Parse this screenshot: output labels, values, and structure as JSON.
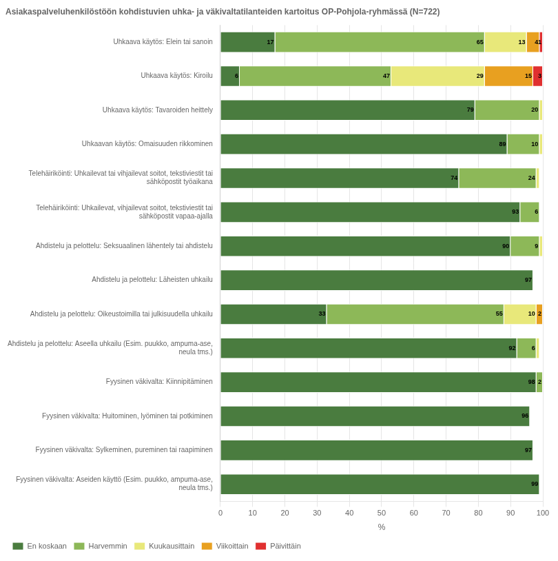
{
  "chart_data": {
    "type": "bar",
    "orientation": "horizontal",
    "stacked": true,
    "title": "Asiakaspalveluhenkilöstöön kohdistuvien uhka- ja väkivaltatilanteiden kartoitus OP-Pohjola-ryhmässä (N=722)",
    "xlabel": "%",
    "categories": [
      "Uhkaava käytös: Elein tai sanoin",
      "Uhkaava käytös: Kiroilu",
      "Uhkaava käytös: Tavaroiden heittely",
      "Uhkaavan käytös: Omaisuuden rikkominen",
      "Telehäiriköinti: Uhkailevat tai vihjailevat soitot, tekstiviestit tai\nsähköpostit työaikana",
      "Telehäiriköinti: Uhkailevat, vihjailevat soitot, tekstiviestit tai\nsähköpostit vapaa-ajalla",
      "Ahdistelu ja pelottelu: Seksuaalinen lähentely tai ahdistelu",
      "Ahdistelu ja pelottelu: Läheisten uhkailu",
      "Ahdistelu ja pelottelu: Oikeustoimilla tai julkisuudella uhkailu",
      "Ahdistelu ja pelottelu: Aseella uhkailu (Esim. puukko, ampuma-ase,\nneula tms.)",
      "Fyysinen väkivalta: Kiinnipitäminen",
      "Fyysinen väkivalta: Huitominen, lyöminen tai potkiminen",
      "Fyysinen väkivalta: Sylkeminen, pureminen tai raapiminen",
      "Fyysinen väkivalta: Aseiden käyttö (Esim. puukko, ampuma-ase,\nneula tms.)"
    ],
    "series": [
      {
        "name": "En koskaan",
        "color": "#4a7c3f",
        "values": [
          17,
          6,
          79,
          89,
          74,
          93,
          90,
          97,
          33,
          92,
          98,
          96,
          97,
          99
        ],
        "value_labels": [
          "17",
          "6",
          "79",
          "89",
          "74",
          "93",
          "90",
          "97",
          "33",
          "92",
          "98",
          "96",
          "97",
          "99"
        ]
      },
      {
        "name": "Harvemmin",
        "color": "#8db858",
        "values": [
          65,
          47,
          20,
          10,
          24,
          6,
          9,
          0,
          55,
          6,
          2,
          0,
          0,
          0
        ],
        "value_labels": [
          "65",
          "47",
          "20",
          "10",
          "24",
          "6",
          "9",
          null,
          "55",
          "6",
          "2",
          null,
          null,
          null
        ]
      },
      {
        "name": "Kuukausittain",
        "color": "#e8e87a",
        "values": [
          13,
          29,
          1,
          1,
          1,
          0,
          1,
          0,
          10,
          1,
          0,
          0,
          0,
          0
        ],
        "value_labels": [
          "13",
          "29",
          null,
          null,
          null,
          null,
          null,
          null,
          "10",
          null,
          null,
          null,
          null,
          null
        ]
      },
      {
        "name": "Viikoittain",
        "color": "#e8a020",
        "values": [
          4,
          15,
          0,
          0,
          0,
          0,
          0,
          0,
          2,
          0,
          0,
          0,
          0,
          0
        ],
        "value_labels": [
          "4",
          "15",
          null,
          null,
          null,
          null,
          null,
          null,
          "2",
          null,
          null,
          null,
          null,
          null
        ]
      },
      {
        "name": "Päivittäin",
        "color": "#e03030",
        "values": [
          1,
          3,
          0,
          0,
          0,
          0,
          0,
          0,
          0,
          0,
          0,
          0,
          0,
          0
        ],
        "value_labels": [
          "1",
          "3",
          null,
          null,
          null,
          null,
          null,
          null,
          null,
          null,
          null,
          null,
          null,
          null
        ]
      }
    ],
    "xlim": [
      0,
      100
    ],
    "xticks": [
      0,
      10,
      20,
      30,
      40,
      50,
      60,
      70,
      80,
      90,
      100
    ],
    "grid": true,
    "legend": "lower left",
    "data_labels": true
  }
}
